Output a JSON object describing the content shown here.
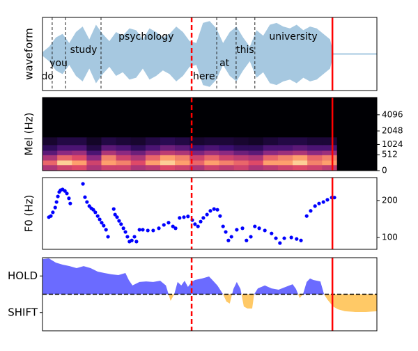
{
  "vlines": [
    {
      "x": 44.6,
      "dashed": true,
      "color": "#ff0000"
    },
    {
      "x": 86.7,
      "dashed": false,
      "color": "#ff0000"
    }
  ],
  "chart_data": [
    {
      "type": "area",
      "ylabel": "waveform",
      "mirror": true,
      "color": "#a6c8e0",
      "xlim": [
        0,
        100
      ],
      "ylim": [
        -1,
        1
      ],
      "x": [
        0,
        2,
        4,
        6,
        8,
        10,
        12,
        14,
        16,
        18,
        20,
        22,
        24,
        26,
        28,
        30,
        32,
        34,
        36,
        38,
        40,
        42,
        44,
        46,
        48,
        50,
        52,
        54,
        56,
        58,
        60,
        62,
        64,
        66,
        68,
        70,
        72,
        74,
        76,
        78,
        80,
        82,
        84,
        86,
        87,
        100
      ],
      "values": [
        0.05,
        0.2,
        0.45,
        0.55,
        0.3,
        0.6,
        0.75,
        0.4,
        0.8,
        0.55,
        0.35,
        0.6,
        0.5,
        0.7,
        0.65,
        0.4,
        0.7,
        0.6,
        0.45,
        0.55,
        0.75,
        0.6,
        0.35,
        0.3,
        0.85,
        0.9,
        0.7,
        0.3,
        0.6,
        0.75,
        0.45,
        0.2,
        0.65,
        0.5,
        0.8,
        0.85,
        0.75,
        0.7,
        0.8,
        0.65,
        0.75,
        0.7,
        0.55,
        0.4,
        0.02,
        0.02
      ],
      "annotations": [
        {
          "text": "do",
          "x": 1.5
        },
        {
          "text": "you",
          "x": 4.8
        },
        {
          "text": "study",
          "x": 12.3
        },
        {
          "text": "psychology",
          "x": 31.0
        },
        {
          "text": "here",
          "x": 48.3
        },
        {
          "text": "at",
          "x": 54.4
        },
        {
          "text": "this",
          "x": 60.6
        },
        {
          "text": "university",
          "x": 75.0
        }
      ],
      "boundaries": [
        2.9,
        6.9,
        17.5,
        52.1,
        57.9,
        63.5
      ]
    },
    {
      "type": "heatmap",
      "ylabel": "Mel (Hz)",
      "yscale": "mel",
      "cmap": "magma",
      "tick_side": "right",
      "xlim": [
        0,
        100
      ],
      "ylim": [
        0,
        8000
      ],
      "yticks": [
        0,
        512,
        1024,
        2048,
        4096
      ],
      "x": [
        0,
        4.4,
        8.8,
        13.2,
        17.6,
        22,
        26.4,
        30.8,
        35.2,
        39.6,
        44,
        48.4,
        52.8,
        57.2,
        61.6,
        66,
        70.4,
        74.8,
        79.2,
        83.6,
        88
      ],
      "y": [
        0,
        150,
        300,
        500,
        700,
        1000,
        1500
      ],
      "z": [
        [
          0.6,
          0.7,
          0.75,
          0.6,
          0.7,
          0.7,
          0.6,
          0.65,
          0.75,
          0.7,
          0.6,
          0.7,
          0.65,
          0.7,
          0.6,
          0.65,
          0.7,
          0.75,
          0.7,
          0.65
        ],
        [
          0.8,
          0.95,
          0.9,
          0.7,
          0.9,
          0.85,
          0.75,
          0.9,
          0.95,
          0.9,
          0.8,
          0.9,
          0.85,
          0.8,
          0.75,
          0.9,
          0.9,
          0.95,
          0.85,
          0.9
        ],
        [
          0.6,
          0.8,
          0.75,
          0.5,
          0.85,
          0.7,
          0.6,
          0.8,
          0.9,
          0.85,
          0.7,
          0.8,
          0.7,
          0.65,
          0.6,
          0.8,
          0.85,
          0.9,
          0.8,
          0.85
        ],
        [
          0.35,
          0.5,
          0.55,
          0.3,
          0.6,
          0.5,
          0.4,
          0.55,
          0.65,
          0.6,
          0.45,
          0.55,
          0.5,
          0.4,
          0.35,
          0.5,
          0.55,
          0.6,
          0.5,
          0.55
        ],
        [
          0.2,
          0.3,
          0.3,
          0.15,
          0.35,
          0.3,
          0.2,
          0.3,
          0.4,
          0.35,
          0.25,
          0.3,
          0.25,
          0.2,
          0.2,
          0.3,
          0.3,
          0.35,
          0.3,
          0.3
        ],
        [
          0.1,
          0.15,
          0.15,
          0.08,
          0.15,
          0.12,
          0.1,
          0.15,
          0.18,
          0.15,
          0.1,
          0.12,
          0.12,
          0.1,
          0.08,
          0.12,
          0.15,
          0.15,
          0.12,
          0.12
        ]
      ]
    },
    {
      "type": "scatter",
      "ylabel": "F0 (Hz)",
      "color": "#0000ff",
      "tick_side": "right",
      "xlim": [
        0,
        100
      ],
      "ylim": [
        68,
        262
      ],
      "yticks": [
        100,
        200
      ],
      "x": [
        1.9,
        2.5,
        3.1,
        3.8,
        4.2,
        4.6,
        5.0,
        5.4,
        6.0,
        6.7,
        7.3,
        7.9,
        8.3,
        12.1,
        12.7,
        13.3,
        14.0,
        14.6,
        15.2,
        15.8,
        16.5,
        17.1,
        17.7,
        18.3,
        19.0,
        19.6,
        21.3,
        21.7,
        22.3,
        22.9,
        23.5,
        24.2,
        24.8,
        25.4,
        26.0,
        26.7,
        27.5,
        28.1,
        29.0,
        30.0,
        31.5,
        33.1,
        34.8,
        36.3,
        37.7,
        39.0,
        39.8,
        41.0,
        42.3,
        43.5,
        44.8,
        45.6,
        46.5,
        47.3,
        48.1,
        49.2,
        50.2,
        51.3,
        52.3,
        53.1,
        54.0,
        54.8,
        55.6,
        56.5,
        58.1,
        59.8,
        61.0,
        62.3,
        63.5,
        64.8,
        66.5,
        68.5,
        69.8,
        71.0,
        72.3,
        74.4,
        76.0,
        77.3,
        79.0,
        80.2,
        81.5,
        82.7,
        84.0,
        85.2,
        86.5,
        87.3
      ],
      "values": [
        155,
        158,
        168,
        181,
        196,
        211,
        223,
        228,
        230,
        226,
        219,
        206,
        192,
        245,
        209,
        196,
        185,
        179,
        175,
        168,
        158,
        149,
        140,
        132,
        121,
        102,
        177,
        162,
        155,
        145,
        136,
        125,
        115,
        102,
        89,
        92,
        102,
        89,
        121,
        121,
        119,
        119,
        125,
        134,
        140,
        130,
        125,
        153,
        155,
        157,
        147,
        136,
        130,
        143,
        153,
        162,
        172,
        177,
        175,
        158,
        130,
        115,
        92,
        102,
        121,
        125,
        92,
        102,
        130,
        125,
        119,
        111,
        98,
        85,
        98,
        100,
        96,
        92,
        158,
        172,
        185,
        192,
        196,
        202,
        208,
        208
      ]
    },
    {
      "type": "area",
      "color": "#6b6bff",
      "negative_color": "#ffc966",
      "tick_side": "left",
      "hline": 0,
      "xlim": [
        0,
        100
      ],
      "ylim": [
        -2,
        2
      ],
      "yticks": [
        {
          "value": 1,
          "label": "HOLD"
        },
        {
          "value": -1,
          "label": "SHIFT"
        }
      ],
      "x": [
        0,
        1.9,
        4.0,
        6.0,
        8.1,
        10.2,
        12.3,
        14.4,
        16.5,
        18.5,
        20.6,
        22.7,
        24.8,
        25.8,
        26.9,
        29.0,
        31.0,
        33.1,
        35.2,
        36.9,
        38.3,
        39.4,
        40.4,
        41.5,
        42.5,
        43.5,
        44.6,
        45.6,
        47.7,
        49.8,
        50.8,
        52.3,
        54.0,
        55.0,
        56.0,
        57.1,
        58.1,
        59.2,
        60.2,
        61.3,
        62.7,
        63.3,
        64.4,
        66.5,
        68.5,
        70.6,
        72.7,
        74.8,
        75.8,
        76.9,
        77.9,
        79.0,
        80.0,
        81.0,
        83.1,
        84.2,
        85.2,
        86.9,
        88.3,
        90.4,
        93.5,
        96.7,
        100
      ],
      "values": [
        1.92,
        1.96,
        1.73,
        1.62,
        1.54,
        1.43,
        1.54,
        1.43,
        1.24,
        1.16,
        1.09,
        1.05,
        1.16,
        0.78,
        0.48,
        0.67,
        0.7,
        0.67,
        0.74,
        0.48,
        -0.36,
        0,
        0.67,
        0.48,
        0.74,
        0.4,
        0.67,
        0.78,
        0.86,
        0.97,
        0.78,
        0.48,
        0,
        -0.4,
        -0.51,
        0.29,
        0.67,
        0.29,
        -0.67,
        -0.78,
        -0.78,
        0,
        0.32,
        0.48,
        0.32,
        0.25,
        0.4,
        0.55,
        0.29,
        -0.21,
        0,
        0.67,
        0.86,
        0.78,
        0.7,
        0,
        -0.29,
        -0.67,
        -0.82,
        -0.93,
        -0.97,
        -0.97,
        -0.93
      ]
    }
  ]
}
